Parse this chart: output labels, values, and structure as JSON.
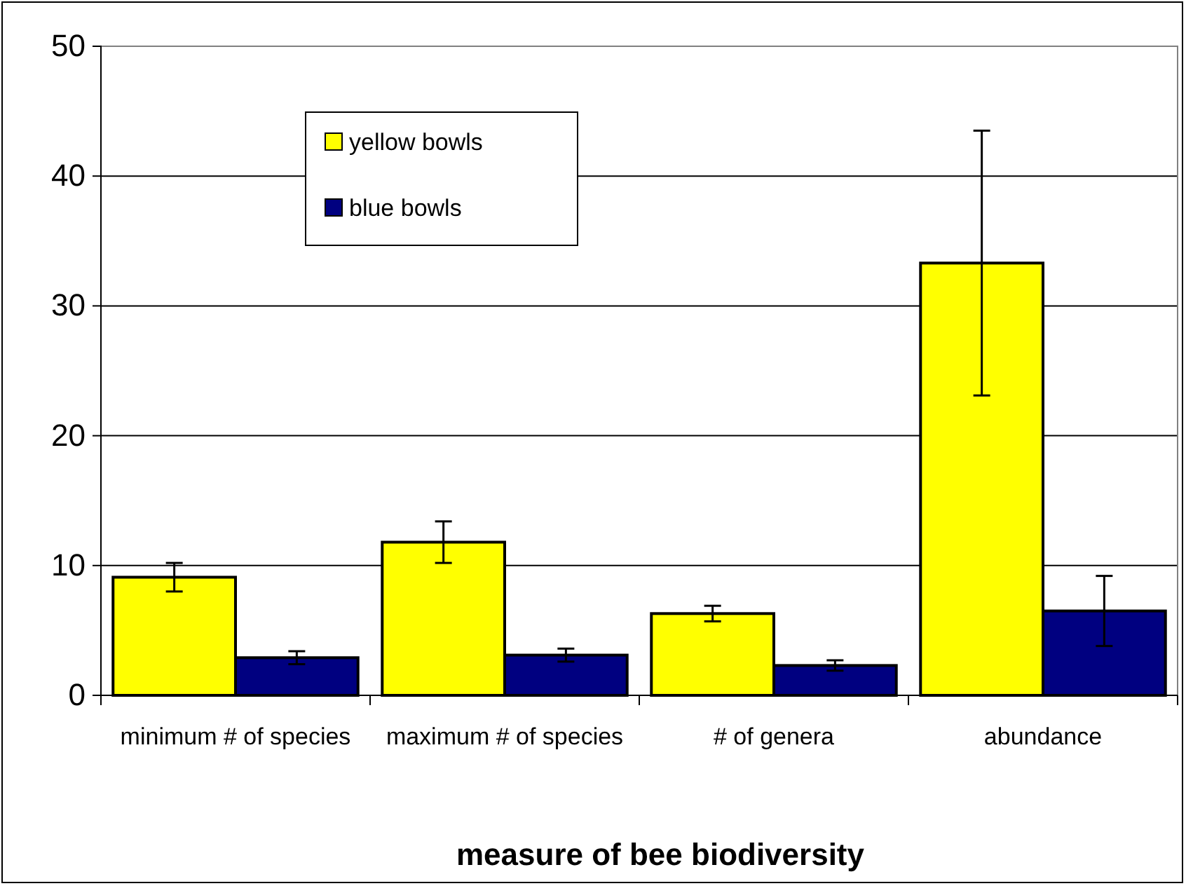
{
  "chart_data": {
    "type": "bar",
    "xlabel": "measure of bee biodiversity",
    "categories": [
      "minimum # of species",
      "maximum # of species",
      "# of genera",
      "abundance"
    ],
    "series": [
      {
        "name": "yellow bowls",
        "color": "#ffff00",
        "values": [
          9.1,
          11.8,
          6.3,
          33.3
        ],
        "errors": [
          1.1,
          1.6,
          0.6,
          10.2
        ]
      },
      {
        "name": "blue bowls",
        "color": "#000080",
        "values": [
          2.9,
          3.1,
          2.3,
          6.5
        ],
        "errors": [
          0.5,
          0.5,
          0.4,
          2.7
        ]
      }
    ],
    "ylim": [
      0,
      50
    ],
    "yticks": [
      0,
      10,
      20,
      30,
      40,
      50
    ],
    "grid": "y",
    "legend": "top left"
  }
}
